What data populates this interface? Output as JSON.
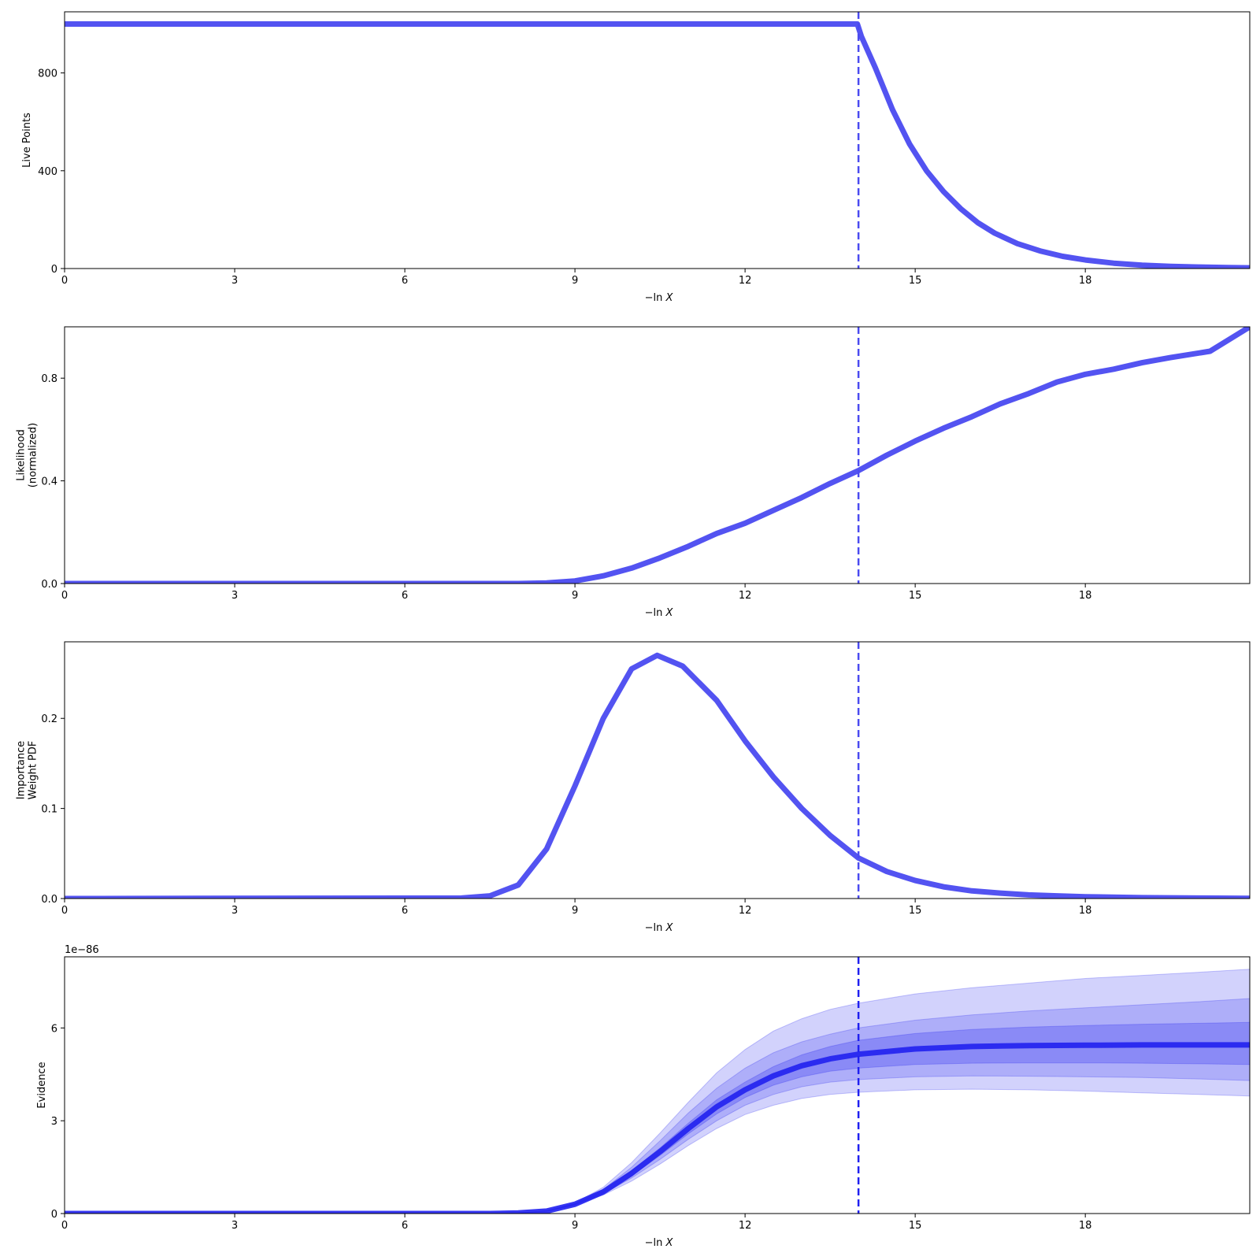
{
  "chart_data": [
    {
      "type": "line",
      "ylabel": [
        "Live Points"
      ],
      "xlabel": "−ln X",
      "xlim": [
        0,
        20.9
      ],
      "ylim": [
        0,
        1050
      ],
      "xticks": [
        0,
        3,
        6,
        9,
        12,
        15,
        18
      ],
      "yticks": [
        0,
        400,
        800
      ],
      "vline": 14.0,
      "color": "#4a4af0",
      "series": [
        {
          "x": [
            0,
            13.98,
            14.05,
            14.3,
            14.6,
            14.9,
            15.2,
            15.5,
            15.8,
            16.1,
            16.4,
            16.8,
            17.2,
            17.6,
            18.0,
            18.5,
            19.0,
            19.5,
            20.0,
            20.5,
            20.9
          ],
          "y": [
            1000,
            1000,
            950,
            820,
            650,
            510,
            400,
            315,
            245,
            188,
            145,
            102,
            72,
            50,
            35,
            22,
            14,
            9,
            6,
            4,
            3
          ]
        }
      ]
    },
    {
      "type": "line",
      "ylabel": [
        "Likelihood",
        "(normalized)"
      ],
      "xlabel": "−ln X",
      "xlim": [
        0,
        20.9
      ],
      "ylim": [
        0,
        1.0
      ],
      "xticks": [
        0,
        3,
        6,
        9,
        12,
        15,
        18
      ],
      "yticks": [
        0.0,
        0.4,
        0.8
      ],
      "vline": 14.0,
      "color": "#4a4af0",
      "series": [
        {
          "x": [
            0,
            8.0,
            8.5,
            9.0,
            9.5,
            10.0,
            10.5,
            11.0,
            11.5,
            12.0,
            12.5,
            13.0,
            13.5,
            14.0,
            14.5,
            15.0,
            15.5,
            16.0,
            16.5,
            17.0,
            17.5,
            18.0,
            18.5,
            19.0,
            19.5,
            20.2,
            20.9
          ],
          "y": [
            0,
            0.0,
            0.002,
            0.01,
            0.03,
            0.06,
            0.1,
            0.145,
            0.195,
            0.235,
            0.285,
            0.335,
            0.39,
            0.44,
            0.5,
            0.555,
            0.605,
            0.65,
            0.7,
            0.74,
            0.785,
            0.815,
            0.835,
            0.86,
            0.88,
            0.905,
            1.0
          ]
        }
      ]
    },
    {
      "type": "line",
      "ylabel": [
        "Importance",
        "Weight PDF"
      ],
      "xlabel": "−ln X",
      "xlim": [
        0,
        20.9
      ],
      "ylim": [
        0,
        0.285
      ],
      "xticks": [
        0,
        3,
        6,
        9,
        12,
        15,
        18
      ],
      "yticks": [
        0.0,
        0.1,
        0.2
      ],
      "vline": 14.0,
      "color": "#4a4af0",
      "series": [
        {
          "x": [
            0,
            7.0,
            7.5,
            8.0,
            8.5,
            9.0,
            9.5,
            10.0,
            10.45,
            10.9,
            11.5,
            12.0,
            12.5,
            13.0,
            13.5,
            14.0,
            14.5,
            15.0,
            15.5,
            16.0,
            16.5,
            17.0,
            17.5,
            18.0,
            19.0,
            20.0,
            20.9
          ],
          "y": [
            0,
            0.0005,
            0.003,
            0.015,
            0.055,
            0.125,
            0.2,
            0.255,
            0.27,
            0.258,
            0.22,
            0.175,
            0.135,
            0.1,
            0.07,
            0.045,
            0.03,
            0.02,
            0.013,
            0.0085,
            0.006,
            0.004,
            0.003,
            0.002,
            0.001,
            0.0005,
            0.0002
          ]
        }
      ]
    },
    {
      "type": "area",
      "ylabel": [
        "Evidence"
      ],
      "xlabel": "−ln X",
      "offset_text": "1e−86",
      "xlim": [
        0,
        20.9
      ],
      "ylim": [
        0,
        8.3
      ],
      "xticks": [
        0,
        3,
        6,
        9,
        12,
        15,
        18
      ],
      "yticks": [
        0,
        3,
        6
      ],
      "vline": 14.0,
      "color": "#2020f0",
      "x": [
        0,
        7.5,
        8.0,
        8.5,
        9.0,
        9.5,
        10.0,
        10.5,
        11.0,
        11.5,
        12.0,
        12.5,
        13.0,
        13.5,
        14.0,
        15.0,
        16.0,
        17.0,
        18.0,
        19.0,
        20.0,
        20.9
      ],
      "median": [
        0,
        0.0,
        0.02,
        0.08,
        0.3,
        0.7,
        1.3,
        2.0,
        2.75,
        3.45,
        4.0,
        4.45,
        4.78,
        5.0,
        5.15,
        5.32,
        5.4,
        5.43,
        5.44,
        5.45,
        5.45,
        5.45
      ],
      "bands": [
        {
          "name": "3-sigma",
          "lower": [
            0,
            0.0,
            0.02,
            0.07,
            0.27,
            0.6,
            1.05,
            1.6,
            2.2,
            2.75,
            3.2,
            3.5,
            3.72,
            3.85,
            3.92,
            4.0,
            4.02,
            4.0,
            3.96,
            3.9,
            3.85,
            3.8
          ],
          "upper": [
            0,
            0.0,
            0.02,
            0.09,
            0.34,
            0.85,
            1.65,
            2.6,
            3.6,
            4.55,
            5.3,
            5.9,
            6.3,
            6.6,
            6.8,
            7.1,
            7.3,
            7.45,
            7.6,
            7.7,
            7.8,
            7.9
          ],
          "opacity": 0.2
        },
        {
          "name": "2-sigma",
          "lower": [
            0,
            0.0,
            0.02,
            0.075,
            0.28,
            0.64,
            1.15,
            1.75,
            2.4,
            3.0,
            3.5,
            3.85,
            4.1,
            4.25,
            4.33,
            4.42,
            4.45,
            4.44,
            4.42,
            4.4,
            4.35,
            4.3
          ],
          "upper": [
            0,
            0.0,
            0.02,
            0.085,
            0.32,
            0.78,
            1.5,
            2.35,
            3.25,
            4.05,
            4.7,
            5.2,
            5.55,
            5.8,
            6.0,
            6.25,
            6.42,
            6.55,
            6.65,
            6.75,
            6.85,
            6.95
          ],
          "opacity": 0.2
        },
        {
          "name": "1-sigma",
          "lower": [
            0,
            0.0,
            0.02,
            0.078,
            0.29,
            0.67,
            1.22,
            1.88,
            2.58,
            3.22,
            3.75,
            4.15,
            4.42,
            4.6,
            4.7,
            4.82,
            4.86,
            4.87,
            4.87,
            4.86,
            4.84,
            4.82
          ],
          "upper": [
            0,
            0.0,
            0.02,
            0.082,
            0.31,
            0.73,
            1.38,
            2.12,
            2.92,
            3.68,
            4.25,
            4.75,
            5.13,
            5.4,
            5.6,
            5.82,
            5.95,
            6.03,
            6.08,
            6.12,
            6.15,
            6.18
          ],
          "opacity": 0.25
        }
      ]
    }
  ]
}
